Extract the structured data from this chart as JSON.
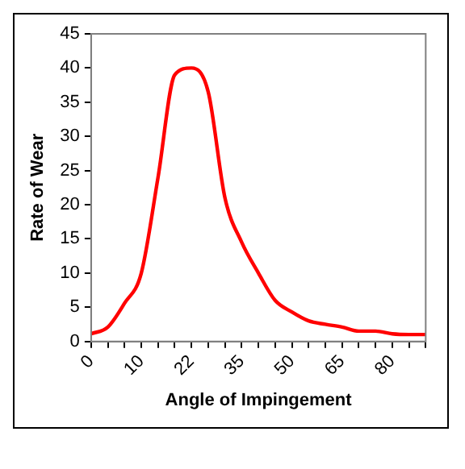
{
  "chart_data": {
    "type": "line",
    "xlabel": "Angle of Impingement",
    "ylabel": "Rate of Wear",
    "categories": [
      "0",
      null,
      null,
      "10",
      null,
      null,
      "22",
      null,
      null,
      "35",
      null,
      null,
      "50",
      null,
      null,
      "65",
      null,
      null,
      "80",
      null,
      null
    ],
    "series": [
      {
        "color": "#ff0000",
        "values": [
          1.1,
          2.1,
          5.6,
          10,
          24,
          39,
          40,
          36.5,
          21,
          14.5,
          10,
          6,
          4.3,
          3,
          2.5,
          2.1,
          1.5,
          1.5,
          1.1,
          1,
          1
        ]
      }
    ],
    "ylim": [
      0,
      45
    ],
    "yticks": [
      0,
      5,
      10,
      15,
      20,
      25,
      30,
      35,
      40,
      45
    ],
    "grid": false,
    "legend": false,
    "marker": "none",
    "line_style": "solid"
  }
}
